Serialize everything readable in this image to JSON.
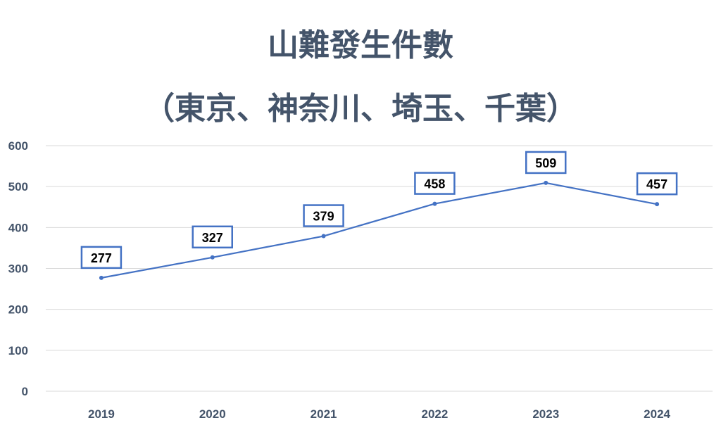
{
  "chart_data": {
    "type": "line",
    "title": "山難發生件數",
    "subtitle": "（東京、神奈川、埼玉、千葉）",
    "xlabel": "",
    "ylabel": "",
    "categories": [
      "2019",
      "2020",
      "2021",
      "2022",
      "2023",
      "2024"
    ],
    "values": [
      277,
      327,
      379,
      458,
      509,
      457
    ],
    "ylim": [
      0,
      600
    ],
    "yticks": [
      "0",
      "100",
      "200",
      "300",
      "400",
      "500",
      "600"
    ],
    "grid": true,
    "legend": "none",
    "data_labels": true
  },
  "colors": {
    "line": "#4472C4",
    "title": "#44546A",
    "grid": "#D9D9D9",
    "tick": "#44546A"
  }
}
